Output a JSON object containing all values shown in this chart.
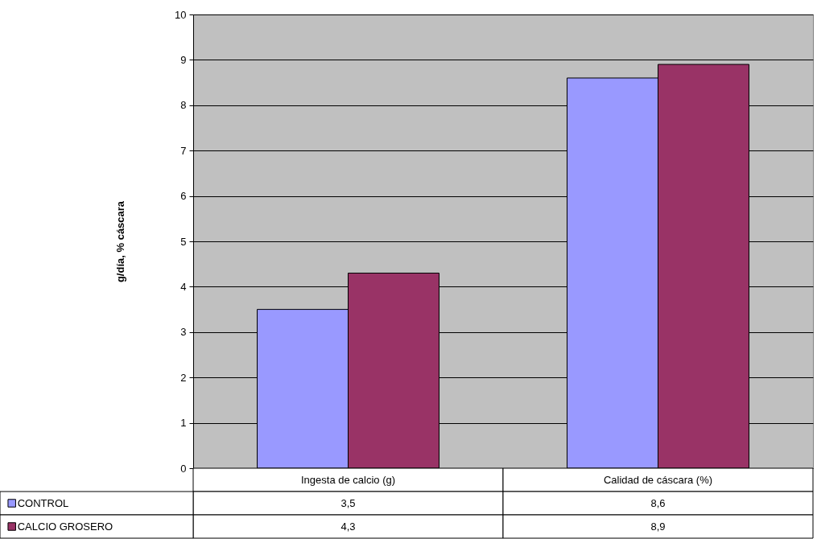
{
  "chart_data": {
    "type": "bar",
    "ylabel": "g/día,  % cáscara",
    "categories": [
      "Ingesta de calcio (g)",
      "Calidad de cáscara (%)"
    ],
    "series": [
      {
        "name": "CONTROL",
        "color": "#9999ff",
        "values": [
          3.5,
          8.6
        ],
        "value_labels": [
          "3,5",
          "8,6"
        ]
      },
      {
        "name": "CALCIO GROSERO",
        "color": "#993366",
        "values": [
          4.3,
          8.9
        ],
        "value_labels": [
          "4,3",
          "8,9"
        ]
      }
    ],
    "ylim": [
      0,
      10
    ],
    "yticks": [
      0,
      1,
      2,
      3,
      4,
      5,
      6,
      7,
      8,
      9,
      10
    ],
    "grid": "y",
    "legend": "bottom left"
  }
}
